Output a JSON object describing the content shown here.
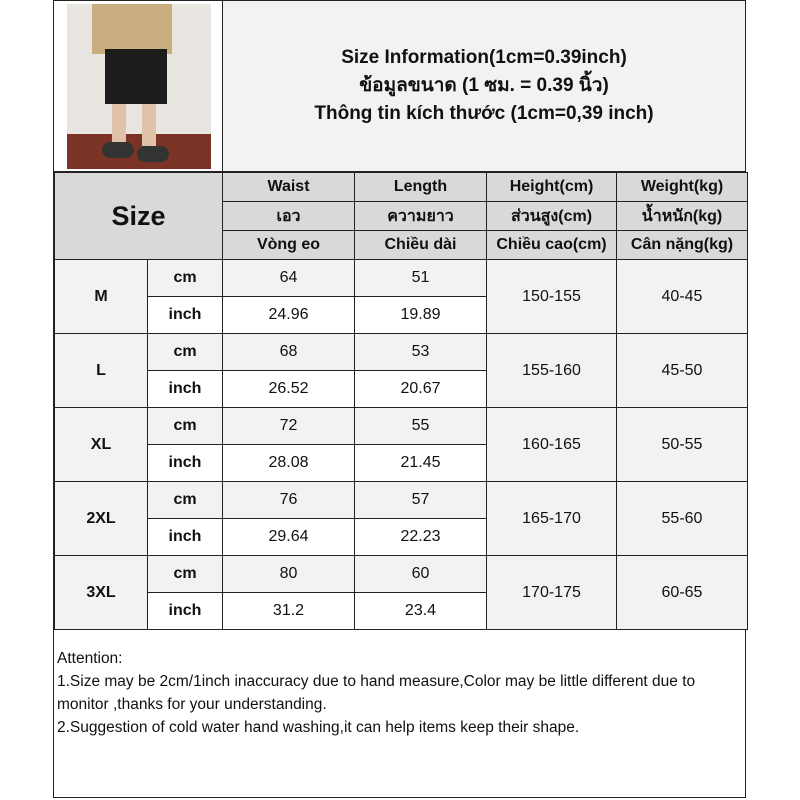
{
  "title": {
    "line1": "Size Information(1cm=0.39inch)",
    "line2": "ข้อมูลขนาด (1 ซม. = 0.39 นิ้ว)",
    "line3": "Thông tin kích thước (1cm=0,39 inch)"
  },
  "header": {
    "size_label": "Size",
    "columns": [
      {
        "en": "Waist",
        "th": "เอว",
        "vi": "Vòng eo"
      },
      {
        "en": "Length",
        "th": "ความยาว",
        "vi": "Chiều dài"
      },
      {
        "en": "Height(cm)",
        "th": "ส่วนสูง(cm)",
        "vi": "Chiều cao(cm)"
      },
      {
        "en": "Weight(kg)",
        "th": "น้ำหนัก(kg)",
        "vi": "Cân nặng(kg)"
      }
    ]
  },
  "units": {
    "cm": "cm",
    "inch": "inch"
  },
  "sizes": [
    {
      "size": "M",
      "waist_cm": "64",
      "length_cm": "51",
      "waist_in": "24.96",
      "length_in": "19.89",
      "height": "150-155",
      "weight": "40-45"
    },
    {
      "size": "L",
      "waist_cm": "68",
      "length_cm": "53",
      "waist_in": "26.52",
      "length_in": "20.67",
      "height": "155-160",
      "weight": "45-50"
    },
    {
      "size": "XL",
      "waist_cm": "72",
      "length_cm": "55",
      "waist_in": "28.08",
      "length_in": "21.45",
      "height": "160-165",
      "weight": "50-55"
    },
    {
      "size": "2XL",
      "waist_cm": "76",
      "length_cm": "57",
      "waist_in": "29.64",
      "length_in": "22.23",
      "height": "165-170",
      "weight": "55-60"
    },
    {
      "size": "3XL",
      "waist_cm": "80",
      "length_cm": "60",
      "waist_in": "31.2",
      "length_in": "23.4",
      "height": "170-175",
      "weight": "60-65"
    }
  ],
  "notes": {
    "heading": "Attention:",
    "line1": "1.Size may be 2cm/1inch inaccuracy due to hand measure,Color may be little different due to monitor ,thanks for your understanding.",
    "line2": "2.Suggestion of cold water hand washing,it can help items keep their shape."
  },
  "colors": {
    "header_bg": "#d9d9d9",
    "cm_row_bg": "#f2f2f2",
    "inch_row_bg": "#ffffff"
  }
}
